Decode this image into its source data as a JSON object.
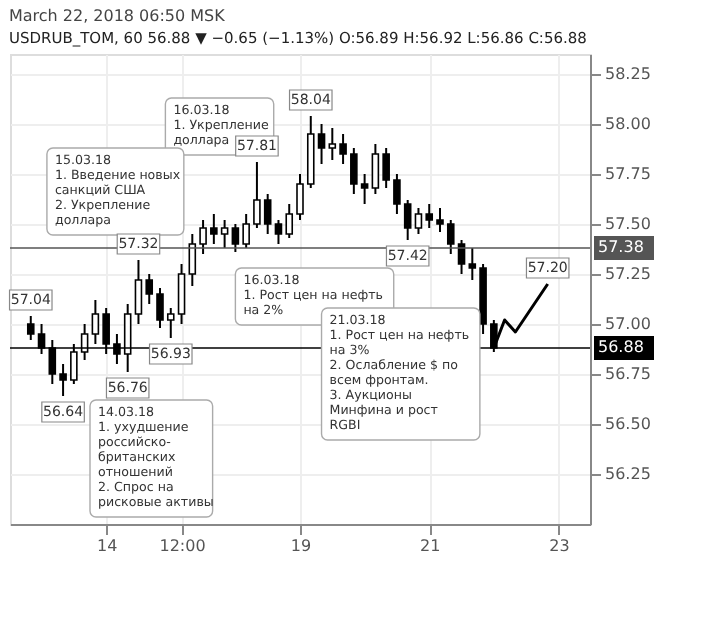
{
  "chart_data": {
    "type": "candlestick",
    "title": "March 22, 2018 06:50 MSK",
    "subtitle": "USDRUB_TOM, 60  56.88 ▼ −0.65 (−1.13%) O:56.89 H:56.92 L:56.86 C:56.88",
    "color": "#000000",
    "categories": [
      null,
      null,
      null,
      null,
      null,
      null,
      null,
      "14",
      null,
      null,
      null,
      null,
      null,
      null,
      "12:00",
      null,
      null,
      null,
      null,
      null,
      null,
      null,
      null,
      null,
      null,
      "19",
      null,
      null,
      null,
      null,
      null,
      null,
      null,
      null,
      null,
      null,
      null,
      "21",
      null,
      null,
      null,
      null,
      null,
      null,
      null,
      null,
      null,
      null,
      null,
      "23",
      null
    ],
    "ohlc": [
      [
        57.0,
        57.04,
        56.92,
        56.95
      ],
      [
        56.95,
        57.0,
        56.85,
        56.88
      ],
      [
        56.88,
        56.92,
        56.7,
        56.75
      ],
      [
        56.75,
        56.8,
        56.64,
        56.72
      ],
      [
        56.72,
        56.9,
        56.7,
        56.86
      ],
      [
        56.86,
        57.0,
        56.82,
        56.95
      ],
      [
        56.95,
        57.12,
        56.9,
        57.05
      ],
      [
        57.05,
        57.08,
        56.85,
        56.9
      ],
      [
        56.9,
        56.95,
        56.8,
        56.85
      ],
      [
        56.85,
        57.1,
        56.76,
        57.05
      ],
      [
        57.05,
        57.32,
        57.0,
        57.22
      ],
      [
        57.22,
        57.25,
        57.1,
        57.15
      ],
      [
        57.15,
        57.18,
        56.98,
        57.02
      ],
      [
        57.02,
        57.08,
        56.93,
        57.05
      ],
      [
        57.05,
        57.3,
        57.0,
        57.25
      ],
      [
        57.25,
        57.45,
        57.19,
        57.4
      ],
      [
        57.4,
        57.52,
        57.35,
        57.48
      ],
      [
        57.48,
        57.55,
        57.4,
        57.45
      ],
      [
        57.45,
        57.52,
        57.38,
        57.48
      ],
      [
        57.48,
        57.5,
        57.36,
        57.4
      ],
      [
        57.4,
        57.55,
        57.38,
        57.5
      ],
      [
        57.5,
        57.81,
        57.48,
        57.62
      ],
      [
        57.62,
        57.65,
        57.45,
        57.5
      ],
      [
        57.5,
        57.52,
        57.4,
        57.45
      ],
      [
        57.45,
        57.6,
        57.43,
        57.55
      ],
      [
        57.55,
        57.75,
        57.52,
        57.7
      ],
      [
        57.7,
        58.04,
        57.68,
        57.95
      ],
      [
        57.95,
        58.0,
        57.8,
        57.88
      ],
      [
        57.88,
        57.98,
        57.82,
        57.9
      ],
      [
        57.9,
        57.95,
        57.8,
        57.85
      ],
      [
        57.85,
        57.88,
        57.65,
        57.7
      ],
      [
        57.7,
        57.75,
        57.6,
        57.68
      ],
      [
        57.68,
        57.9,
        57.65,
        57.85
      ],
      [
        57.85,
        57.88,
        57.68,
        57.72
      ],
      [
        57.72,
        57.75,
        57.55,
        57.6
      ],
      [
        57.6,
        57.62,
        57.42,
        57.48
      ],
      [
        57.48,
        57.58,
        57.45,
        57.55
      ],
      [
        57.55,
        57.6,
        57.48,
        57.52
      ],
      [
        57.52,
        57.58,
        57.46,
        57.5
      ],
      [
        57.5,
        57.52,
        57.35,
        57.4
      ],
      [
        57.4,
        57.42,
        57.25,
        57.3
      ],
      [
        57.3,
        57.38,
        57.22,
        57.28
      ],
      [
        57.28,
        57.3,
        56.95,
        57.0
      ],
      [
        57.0,
        57.02,
        56.86,
        56.88
      ],
      null,
      null,
      null,
      null,
      null,
      null,
      null
    ],
    "series": [
      {
        "type": "line",
        "color": "#000000",
        "values": [
          null,
          null,
          null,
          null,
          null,
          null,
          null,
          null,
          null,
          null,
          null,
          null,
          null,
          null,
          null,
          null,
          null,
          null,
          null,
          null,
          null,
          null,
          null,
          null,
          null,
          null,
          null,
          null,
          null,
          null,
          null,
          null,
          null,
          null,
          null,
          null,
          null,
          null,
          null,
          null,
          null,
          null,
          null,
          56.88,
          57.02,
          56.96,
          57.04,
          57.12,
          57.2,
          null,
          null
        ]
      }
    ],
    "ylim": [
      56.0,
      58.35
    ],
    "yticks": [
      56.25,
      {
        "value": 56.5,
        "label": "56.50"
      },
      56.75,
      {
        "value": 57.0,
        "label": "57.00"
      },
      57.25,
      {
        "value": 57.5,
        "label": "57.50"
      },
      57.75,
      {
        "value": 58.0,
        "label": "58.00"
      },
      58.25
    ],
    "grid": true,
    "ref_lines": [
      {
        "axis": "y",
        "value": 57.38,
        "label": "57.38",
        "color": "#555555"
      },
      {
        "axis": "y",
        "value": 56.88,
        "label": "56.88",
        "color": "#000000"
      }
    ],
    "annotations": [
      "16.03.18\n1. Укрепление\nдоллара",
      "15.03.18\n1. Введение новых\nсанкций США\n2. Укрепление\nдоллара",
      "16.03.18\n1. Рост цен на нефть\nна 2%",
      "14.03.18\n1. ухудшение\nроссийско-\nбританских\nотношений\n2. Спрос на\nрисковые активы",
      "21.03.18\n1. Рост цен на нефть\nна 3%\n2. Ослабление $ по\nвсем фронтам.\n3. Аукционы\nМинфина и рост\nRGBI",
      {
        "text": "57.04",
        "y": 57.04
      },
      {
        "text": "56.64",
        "y": 56.64
      },
      {
        "text": "56.76",
        "y": 56.76
      },
      {
        "text": "57.32",
        "y": 57.32
      },
      {
        "text": "56.93",
        "y": 56.93
      },
      {
        "text": "57.81",
        "y": 57.81
      },
      {
        "text": "58.04",
        "y": 58.04
      },
      {
        "text": "57.42",
        "y": 57.42
      },
      {
        "text": "57.20",
        "y": 57.2
      }
    ]
  }
}
